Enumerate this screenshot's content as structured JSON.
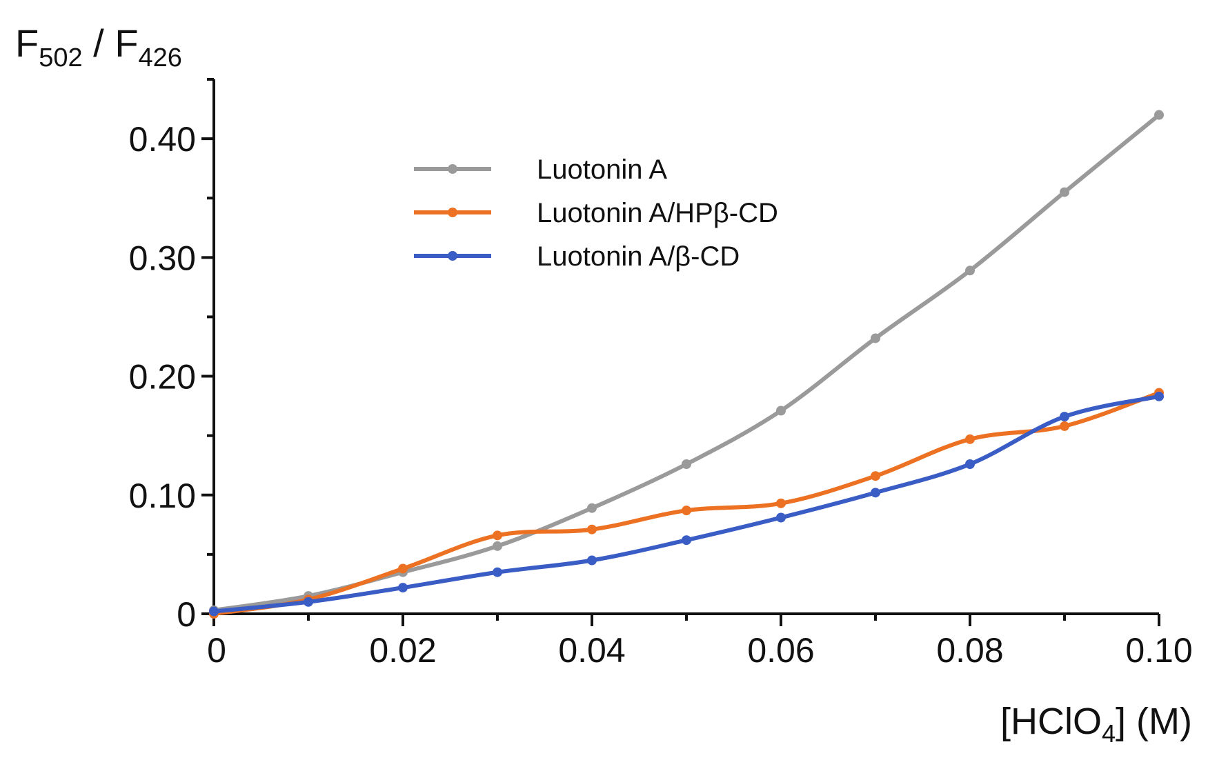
{
  "chart_data": {
    "type": "line",
    "title": "",
    "ylabel": {
      "main1": "F",
      "sub1": "502",
      "sep": " / ",
      "main2": "F",
      "sub2": "426"
    },
    "xlabel": {
      "pre": "[HClO",
      "sub": "4",
      "post": "] (M)"
    },
    "xlim": [
      0,
      0.1
    ],
    "ylim": [
      0,
      0.45
    ],
    "x_ticks": [
      {
        "value": 0,
        "label": "0"
      },
      {
        "value": 0.02,
        "label": "0.02"
      },
      {
        "value": 0.04,
        "label": "0.04"
      },
      {
        "value": 0.06,
        "label": "0.06"
      },
      {
        "value": 0.08,
        "label": "0.08"
      },
      {
        "value": 0.1,
        "label": "0.10"
      }
    ],
    "y_ticks": [
      {
        "value": 0,
        "label": "0"
      },
      {
        "value": 0.1,
        "label": "0.10"
      },
      {
        "value": 0.2,
        "label": "0.20"
      },
      {
        "value": 0.3,
        "label": "0.30"
      },
      {
        "value": 0.4,
        "label": "0.40"
      }
    ],
    "y_minor_ticks": [
      0.05,
      0.15,
      0.25,
      0.35,
      0.45
    ],
    "x_minor_ticks": [
      0.01,
      0.03,
      0.05,
      0.07,
      0.09
    ],
    "legend_position": "upper-center",
    "x": [
      0,
      0.01,
      0.02,
      0.03,
      0.04,
      0.05,
      0.06,
      0.07,
      0.08,
      0.09,
      0.1
    ],
    "series": [
      {
        "name": "Luotonin A",
        "color": "#9a9a9a",
        "values": [
          0.003,
          0.015,
          0.035,
          0.057,
          0.089,
          0.126,
          0.171,
          0.232,
          0.289,
          0.355,
          0.42
        ]
      },
      {
        "name": "Luotonin A/HPβ-CD",
        "color": "#ec7122",
        "values": [
          0.0,
          0.012,
          0.038,
          0.066,
          0.071,
          0.087,
          0.093,
          0.116,
          0.147,
          0.158,
          0.186
        ]
      },
      {
        "name": "Luotonin A/β-CD",
        "color": "#3a5cc5",
        "values": [
          0.002,
          0.01,
          0.022,
          0.035,
          0.045,
          0.062,
          0.081,
          0.102,
          0.126,
          0.166,
          0.183
        ]
      }
    ]
  }
}
